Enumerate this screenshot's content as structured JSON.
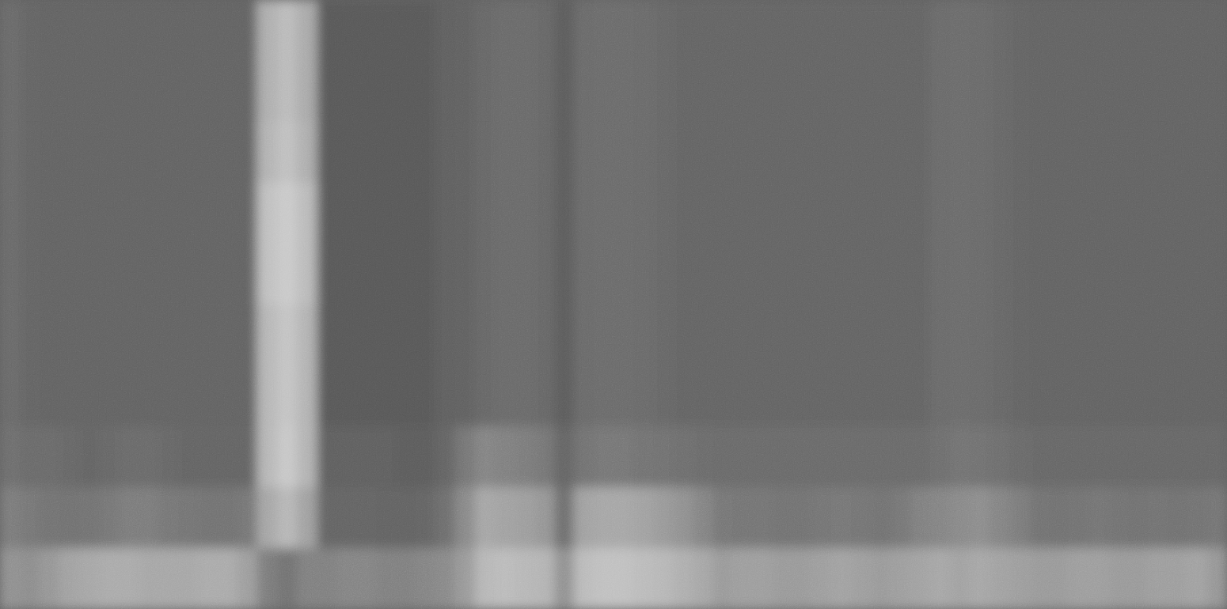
{
  "chart_data": {
    "type": "heatmap",
    "tick_labels": false,
    "zlim": [
      0,
      100
    ],
    "cells": [
      [
        30,
        28,
        27,
        27,
        27,
        27,
        27,
        27,
        27,
        27,
        27,
        27,
        27,
        62,
        68,
        60,
        23,
        23,
        23,
        23,
        23,
        23,
        25,
        26,
        29,
        30,
        30,
        29,
        24,
        30,
        31,
        31,
        30,
        29,
        28,
        28,
        28,
        28,
        28,
        28,
        28,
        28,
        28,
        28,
        28,
        28,
        28,
        30,
        31,
        30,
        29,
        28,
        27,
        27,
        27,
        27,
        27,
        27,
        27,
        27,
        27,
        27
      ],
      [
        30,
        28,
        27,
        27,
        27,
        27,
        27,
        27,
        27,
        27,
        27,
        27,
        27,
        62,
        68,
        60,
        23,
        23,
        23,
        23,
        23,
        23,
        25,
        26,
        29,
        30,
        30,
        29,
        24,
        30,
        31,
        31,
        30,
        29,
        28,
        28,
        28,
        28,
        28,
        28,
        28,
        28,
        28,
        28,
        28,
        28,
        28,
        30,
        31,
        30,
        29,
        28,
        27,
        27,
        27,
        27,
        27,
        27,
        27,
        27,
        27,
        27
      ],
      [
        30,
        28,
        27,
        27,
        27,
        27,
        27,
        27,
        27,
        27,
        27,
        27,
        27,
        64,
        70,
        62,
        23,
        23,
        23,
        23,
        23,
        23,
        25,
        26,
        29,
        30,
        30,
        29,
        24,
        30,
        31,
        31,
        30,
        29,
        28,
        28,
        28,
        28,
        28,
        28,
        28,
        28,
        28,
        28,
        28,
        28,
        28,
        30,
        31,
        30,
        29,
        28,
        27,
        27,
        27,
        27,
        27,
        27,
        27,
        27,
        27,
        27
      ],
      [
        30,
        28,
        27,
        27,
        27,
        27,
        27,
        27,
        27,
        27,
        27,
        27,
        27,
        70,
        75,
        68,
        23,
        23,
        23,
        23,
        23,
        23,
        25,
        26,
        29,
        30,
        30,
        29,
        24,
        30,
        31,
        31,
        30,
        29,
        28,
        28,
        28,
        28,
        28,
        28,
        28,
        28,
        28,
        28,
        28,
        28,
        28,
        30,
        31,
        30,
        29,
        28,
        27,
        27,
        27,
        27,
        27,
        27,
        27,
        27,
        27,
        27
      ],
      [
        30,
        28,
        27,
        27,
        27,
        27,
        27,
        27,
        27,
        27,
        27,
        27,
        27,
        70,
        75,
        68,
        23,
        23,
        23,
        23,
        23,
        23,
        25,
        26,
        29,
        30,
        30,
        29,
        24,
        30,
        31,
        31,
        30,
        29,
        28,
        28,
        28,
        28,
        28,
        28,
        28,
        28,
        28,
        28,
        28,
        28,
        28,
        30,
        31,
        30,
        29,
        28,
        27,
        27,
        27,
        27,
        27,
        27,
        27,
        27,
        27,
        27
      ],
      [
        30,
        28,
        27,
        27,
        27,
        27,
        27,
        27,
        27,
        27,
        27,
        27,
        27,
        66,
        72,
        64,
        23,
        23,
        23,
        23,
        23,
        23,
        25,
        26,
        29,
        30,
        30,
        29,
        24,
        30,
        31,
        31,
        30,
        29,
        28,
        28,
        28,
        28,
        28,
        28,
        28,
        28,
        28,
        28,
        28,
        28,
        28,
        30,
        31,
        30,
        29,
        28,
        27,
        27,
        27,
        27,
        27,
        27,
        27,
        27,
        27,
        27
      ],
      [
        30,
        28,
        27,
        27,
        27,
        27,
        27,
        27,
        27,
        27,
        27,
        27,
        27,
        66,
        72,
        64,
        23,
        23,
        23,
        23,
        23,
        23,
        25,
        26,
        29,
        30,
        30,
        29,
        24,
        30,
        31,
        31,
        30,
        29,
        28,
        28,
        28,
        28,
        28,
        28,
        28,
        28,
        28,
        28,
        28,
        28,
        28,
        30,
        31,
        30,
        29,
        28,
        27,
        27,
        27,
        27,
        27,
        27,
        27,
        27,
        27,
        27
      ],
      [
        32,
        30,
        30,
        29,
        28,
        29,
        30,
        30,
        29,
        28,
        28,
        28,
        28,
        66,
        74,
        64,
        25,
        25,
        25,
        25,
        24,
        24,
        28,
        36,
        42,
        40,
        38,
        36,
        28,
        34,
        36,
        36,
        34,
        33,
        32,
        31,
        30,
        30,
        30,
        30,
        30,
        30,
        30,
        30,
        30,
        30,
        30,
        32,
        34,
        33,
        32,
        30,
        29,
        29,
        29,
        29,
        29,
        29,
        29,
        29,
        29,
        29
      ],
      [
        38,
        36,
        34,
        33,
        34,
        36,
        38,
        38,
        36,
        35,
        34,
        34,
        36,
        58,
        66,
        56,
        28,
        28,
        28,
        27,
        27,
        28,
        32,
        44,
        58,
        56,
        54,
        50,
        32,
        56,
        58,
        58,
        56,
        52,
        48,
        42,
        36,
        35,
        35,
        34,
        34,
        35,
        36,
        35,
        34,
        36,
        40,
        42,
        44,
        46,
        42,
        38,
        34,
        33,
        34,
        35,
        34,
        33,
        34,
        33,
        34,
        35
      ],
      [
        48,
        46,
        50,
        56,
        58,
        60,
        60,
        58,
        58,
        58,
        60,
        60,
        54,
        38,
        34,
        40,
        40,
        42,
        42,
        40,
        40,
        42,
        44,
        52,
        66,
        68,
        66,
        64,
        48,
        68,
        70,
        70,
        68,
        66,
        62,
        58,
        52,
        54,
        54,
        52,
        52,
        54,
        56,
        54,
        52,
        54,
        56,
        58,
        56,
        58,
        56,
        54,
        52,
        52,
        54,
        54,
        52,
        52,
        54,
        54,
        56,
        50
      ]
    ]
  }
}
